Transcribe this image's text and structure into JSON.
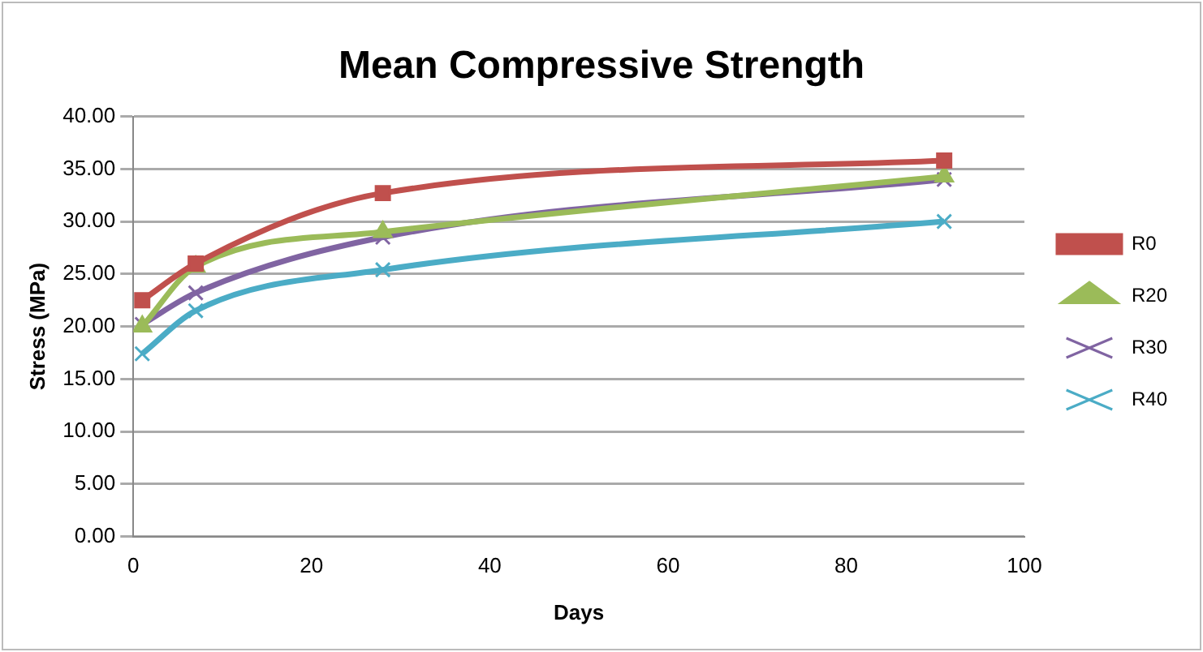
{
  "chart_data": {
    "type": "line",
    "title": "Mean Compressive Strength",
    "xlabel": "Days",
    "ylabel": "Stress (MPa)",
    "x": [
      1,
      7,
      28,
      91
    ],
    "series": [
      {
        "name": "R0",
        "color": "#c0504d",
        "marker": "square",
        "values": [
          22.5,
          26,
          32.7,
          35.8
        ]
      },
      {
        "name": "R20",
        "color": "#9bbb59",
        "marker": "triangle",
        "values": [
          20,
          25.7,
          29,
          34.3
        ]
      },
      {
        "name": "R30",
        "color": "#8064a2",
        "marker": "cross",
        "values": [
          20.2,
          23.2,
          28.5,
          34
        ]
      },
      {
        "name": "R40",
        "color": "#4bacc6",
        "marker": "cross",
        "values": [
          17.4,
          21.5,
          25.4,
          30
        ]
      }
    ],
    "xlim": [
      0,
      100
    ],
    "xticks": [
      0,
      20,
      40,
      60,
      80,
      100
    ],
    "ylim": [
      0,
      40
    ],
    "yticks": [
      {
        "value": 0,
        "label": "0.00"
      },
      {
        "value": 5,
        "label": "5.00"
      },
      {
        "value": 10,
        "label": "10.00"
      },
      {
        "value": 15,
        "label": "15.00"
      },
      {
        "value": 20,
        "label": "20.00"
      },
      {
        "value": 25,
        "label": "25.00"
      },
      {
        "value": 30,
        "label": "30.00"
      },
      {
        "value": 35,
        "label": "35.00"
      },
      {
        "value": 40,
        "label": "40.00"
      }
    ],
    "grid": "y",
    "legend": "right"
  }
}
